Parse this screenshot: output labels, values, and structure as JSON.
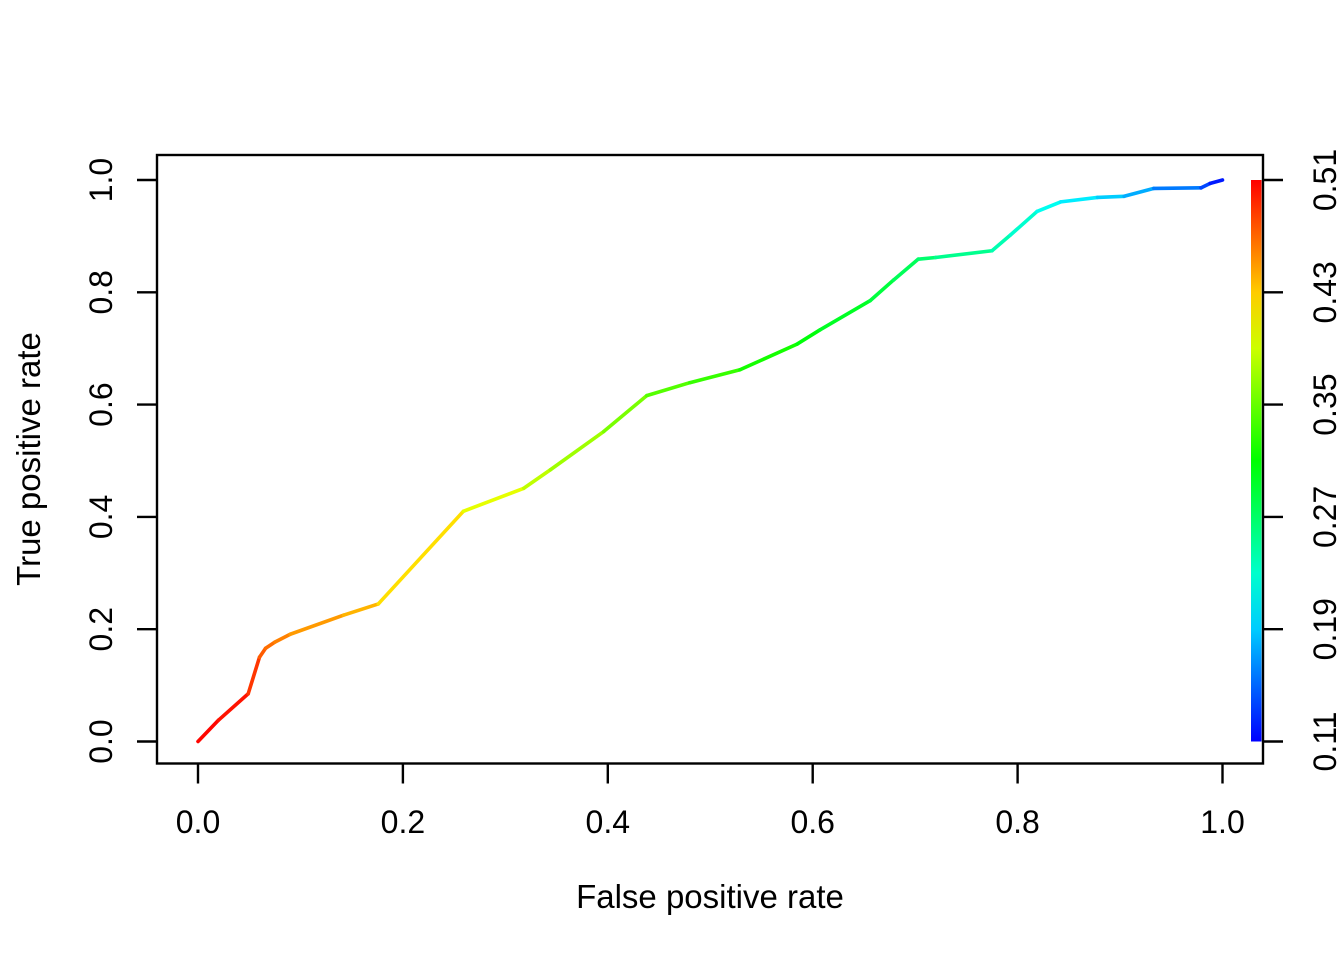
{
  "figure": {
    "background": "#FFFFFF",
    "description": "ROC curve colorized by cutoff value"
  },
  "colors": {
    "background": "#FFFFFF",
    "axis": "#000000",
    "cutoff_high": "#FF0000",
    "cutoff_low": "#0000FF"
  },
  "chart_data": {
    "type": "line",
    "title": "",
    "xlabel": "False positive rate",
    "ylabel": "True positive rate",
    "xlim": [
      0,
      1
    ],
    "ylim": [
      0,
      1
    ],
    "grid": false,
    "x_ticks": [
      "0.0",
      "0.2",
      "0.4",
      "0.6",
      "0.8",
      "1.0"
    ],
    "y_ticks": [
      "0.0",
      "0.2",
      "0.4",
      "0.6",
      "0.8",
      "1.0"
    ],
    "legend_position": "right-colorbar",
    "colorbar": {
      "ticks": [
        "0.51",
        "0.43",
        "0.35",
        "0.27",
        "0.19",
        "0.11"
      ],
      "min": 0.11,
      "max": 0.51,
      "colormap": "rainbow",
      "hue_start_deg": 0,
      "hue_end_deg": 240
    },
    "point_format": [
      "fpr",
      "tpr",
      "cutoff"
    ],
    "series": [
      {
        "name": "ROC curve (colorized by cutoff)",
        "points": [
          [
            0.0,
            0.0,
            0.51
          ],
          [
            0.02,
            0.038,
            0.505
          ],
          [
            0.049,
            0.085,
            0.5
          ],
          [
            0.06,
            0.15,
            0.478
          ],
          [
            0.066,
            0.166,
            0.47
          ],
          [
            0.075,
            0.177,
            0.464
          ],
          [
            0.09,
            0.191,
            0.455
          ],
          [
            0.142,
            0.225,
            0.444
          ],
          [
            0.176,
            0.245,
            0.435
          ],
          [
            0.259,
            0.41,
            0.41
          ],
          [
            0.318,
            0.451,
            0.39
          ],
          [
            0.344,
            0.484,
            0.38
          ],
          [
            0.396,
            0.552,
            0.365
          ],
          [
            0.438,
            0.616,
            0.35
          ],
          [
            0.48,
            0.639,
            0.336
          ],
          [
            0.529,
            0.662,
            0.326
          ],
          [
            0.585,
            0.708,
            0.31
          ],
          [
            0.607,
            0.733,
            0.302
          ],
          [
            0.656,
            0.785,
            0.29
          ],
          [
            0.679,
            0.822,
            0.281
          ],
          [
            0.703,
            0.859,
            0.27
          ],
          [
            0.72,
            0.862,
            0.264
          ],
          [
            0.775,
            0.874,
            0.245
          ],
          [
            0.793,
            0.902,
            0.236
          ],
          [
            0.819,
            0.944,
            0.222
          ],
          [
            0.842,
            0.961,
            0.21
          ],
          [
            0.878,
            0.969,
            0.196
          ],
          [
            0.904,
            0.971,
            0.185
          ],
          [
            0.933,
            0.985,
            0.17
          ],
          [
            0.979,
            0.986,
            0.146
          ],
          [
            0.988,
            0.994,
            0.13
          ],
          [
            1.0,
            1.0,
            0.11
          ]
        ]
      }
    ]
  }
}
